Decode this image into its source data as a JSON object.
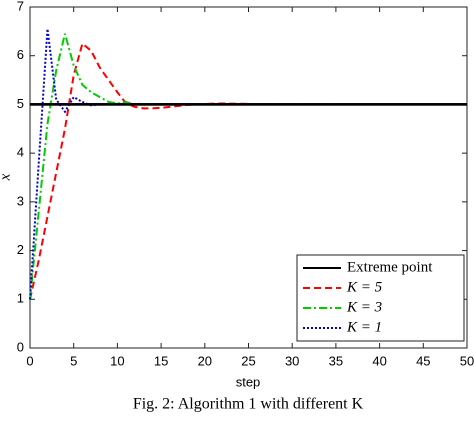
{
  "chart_data": {
    "type": "line",
    "xlabel": "step",
    "ylabel": "x",
    "caption": "Fig. 2: Algorithm 1 with different K",
    "xlim": [
      0,
      50
    ],
    "xticks": [
      0,
      5,
      10,
      15,
      20,
      25,
      30,
      35,
      40,
      45,
      50
    ],
    "ylim": [
      0,
      7
    ],
    "yticks": [
      0,
      1,
      2,
      3,
      4,
      5,
      6,
      7
    ],
    "grid": false,
    "legend": "lower right",
    "series": [
      {
        "name": "Extreme point",
        "color": "#000000",
        "dash": "solid",
        "x": [
          0,
          50
        ],
        "values": [
          5,
          5
        ]
      },
      {
        "name": "K = 5",
        "color": "#ff0000",
        "dash": "dashed",
        "x": [
          0,
          1,
          2,
          3,
          4,
          5,
          6,
          7,
          8,
          9,
          10,
          11,
          12,
          13,
          14,
          15,
          16,
          17,
          18,
          20,
          22,
          25,
          50
        ],
        "values": [
          1,
          1.8,
          2.7,
          3.6,
          4.5,
          5.6,
          6.25,
          6.1,
          5.75,
          5.5,
          5.25,
          5.02,
          4.95,
          4.92,
          4.92,
          4.93,
          4.95,
          4.97,
          4.99,
          5.01,
          5.02,
          5.01,
          5
        ]
      },
      {
        "name": "K = 3",
        "color": "#00cc00",
        "dash": "dashdot",
        "x": [
          0,
          1,
          2,
          3,
          4,
          5,
          6,
          7,
          8,
          9,
          10,
          11,
          12,
          50
        ],
        "values": [
          1,
          2.8,
          4.6,
          5.7,
          6.45,
          5.8,
          5.4,
          5.25,
          5.15,
          5.05,
          5.02,
          5.05,
          5,
          5
        ]
      },
      {
        "name": "K = 1",
        "color": "#0000cc",
        "dash": "dotted",
        "x": [
          0,
          1,
          2,
          3,
          4,
          5,
          6,
          7,
          8,
          50
        ],
        "values": [
          1,
          3.8,
          6.55,
          5.1,
          4.85,
          5.15,
          5.05,
          4.98,
          5,
          5
        ]
      }
    ]
  }
}
